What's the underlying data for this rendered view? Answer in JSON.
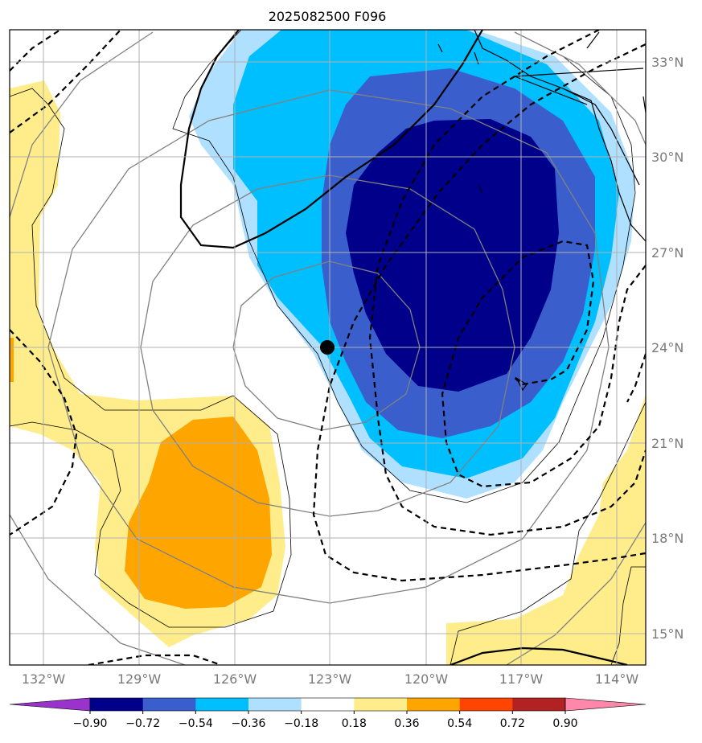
{
  "title": "2025082500 F096",
  "map": {
    "lon_ticks": [
      "132°W",
      "129°W",
      "126°W",
      "123°W",
      "120°W",
      "117°W",
      "114°W"
    ],
    "lat_ticks": [
      "33°N",
      "30°N",
      "27°N",
      "24°N",
      "21°N",
      "18°N",
      "15°N"
    ],
    "extent": {
      "lon": [
        -133,
        -113
      ],
      "lat": [
        14,
        34
      ]
    },
    "gridlines": true,
    "marker": {
      "name": "center point",
      "lon": -123.1,
      "lat": 24.0
    }
  },
  "colorbar": {
    "labels": [
      "−0.90",
      "−0.72",
      "−0.54",
      "−0.36",
      "−0.18",
      "0.18",
      "0.36",
      "0.54",
      "0.72",
      "0.90"
    ],
    "colors": [
      "#9933cc",
      "#00008b",
      "#3a5fcd",
      "#00bfff",
      "#b0e0ff",
      "#ffffff",
      "#ffec8b",
      "#ffa500",
      "#ff4500",
      "#b22222",
      "#ff88aa"
    ],
    "extend": "both"
  },
  "colors": {
    "fill_darkblue": "#00008b",
    "fill_royalblue": "#3a5fcd",
    "fill_deepskyblue": "#00bfff",
    "fill_lightblue": "#b0e0ff",
    "fill_lightyellow": "#ffec8b",
    "fill_orange": "#ffa500",
    "gray_contours": "#808080"
  }
}
